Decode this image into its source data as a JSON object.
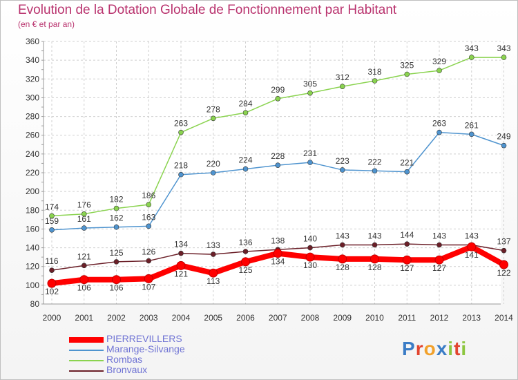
{
  "title": "Evolution de la Dotation Globale de Fonctionnement par Habitant",
  "subtitle": "(en € et par an)",
  "logo": {
    "letters": [
      "P",
      "r",
      "o",
      "x",
      "i",
      "t",
      "i"
    ],
    "colors": [
      "#3a7cc6",
      "#e2452f",
      "#f2a12b",
      "#3a7cc6",
      "#8cc63f",
      "#e2452f",
      "#8cc63f"
    ]
  },
  "chart_data": {
    "type": "line",
    "title": "Evolution de la Dotation Globale de Fonctionnement par Habitant",
    "subtitle": "(en € et par an)",
    "xlabel": "",
    "ylabel": "",
    "x": [
      "2000",
      "2001",
      "2002",
      "2003",
      "2004",
      "2005",
      "2006",
      "2007",
      "2008",
      "2009",
      "2010",
      "2011",
      "2012",
      "2013",
      "2014"
    ],
    "ylim": [
      80,
      360
    ],
    "yticks": [
      "80",
      "100",
      "120",
      "140",
      "160",
      "180",
      "200",
      "220",
      "240",
      "260",
      "280",
      "300",
      "320",
      "340",
      "360"
    ],
    "grid": true,
    "legend_position": "bottom-left",
    "series": [
      {
        "name": "Rombas",
        "color": "#8ad34f",
        "values": [
          174,
          176,
          182,
          186,
          263,
          278,
          284,
          299,
          305,
          312,
          318,
          325,
          329,
          343,
          343
        ]
      },
      {
        "name": "Marange-Silvange",
        "color": "#4f94cf",
        "values": [
          159,
          161,
          162,
          163,
          218,
          220,
          224,
          228,
          231,
          223,
          222,
          221,
          263,
          261,
          249
        ]
      },
      {
        "name": "Bronvaux",
        "color": "#6b1f28",
        "values": [
          116,
          121,
          125,
          126,
          134,
          133,
          136,
          138,
          140,
          143,
          143,
          144,
          143,
          143,
          137
        ]
      },
      {
        "name": "PIERREVILLERS",
        "color": "#ff0000",
        "values": [
          102,
          106,
          106,
          107,
          121,
          113,
          125,
          134,
          130,
          128,
          128,
          127,
          127,
          141,
          122
        ]
      }
    ],
    "legend_order": [
      "PIERREVILLERS",
      "Marange-Silvange",
      "Rombas",
      "Bronvaux"
    ]
  }
}
